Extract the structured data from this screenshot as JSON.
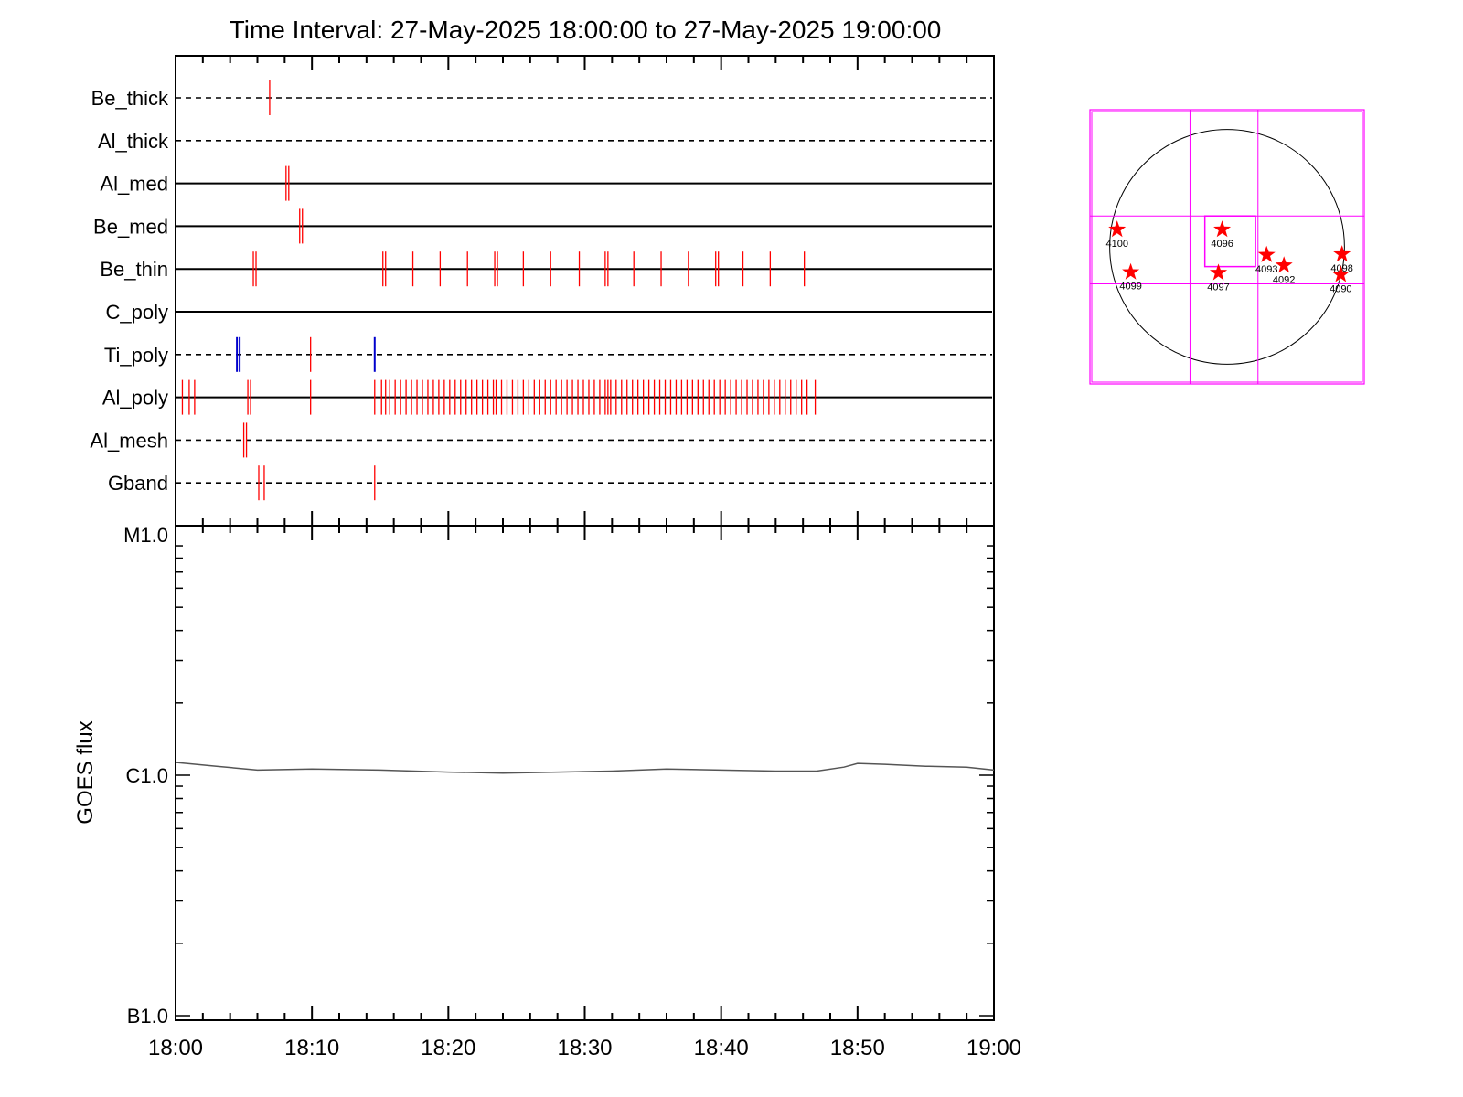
{
  "title": "Time Interval: 27-May-2025 18:00:00 to 27-May-2025 19:00:00",
  "colors": {
    "axis": "#000000",
    "event_red": "#ff0000",
    "event_blue": "#0000cc",
    "grid_magenta": "#ff00ff",
    "goes_line": "#555555"
  },
  "chart_data": [
    {
      "type": "scatter",
      "title": "Time Interval: 27-May-2025 18:00:00 to 27-May-2025 19:00:00",
      "x_units": "minutes after 18:00",
      "xlim": [
        0,
        60
      ],
      "series": [
        {
          "name": "Be_thick",
          "style": "dashed",
          "events_red": [
            6.9
          ],
          "events_blue": []
        },
        {
          "name": "Al_thick",
          "style": "dashed",
          "events_red": [],
          "events_blue": []
        },
        {
          "name": "Al_med",
          "style": "solid",
          "events_red": [
            8.1,
            8.3
          ],
          "events_blue": []
        },
        {
          "name": "Be_med",
          "style": "solid",
          "events_red": [
            9.1,
            9.3
          ],
          "events_blue": []
        },
        {
          "name": "Be_thin",
          "style": "solid",
          "events_red": [
            5.7,
            5.9,
            15.2,
            15.4,
            17.4,
            19.4,
            21.4,
            23.4,
            23.6,
            25.5,
            27.5,
            29.6,
            31.5,
            31.7,
            33.6,
            35.6,
            37.6,
            39.6,
            39.8,
            41.6,
            43.6,
            46.1
          ],
          "events_blue": []
        },
        {
          "name": "C_poly",
          "style": "solid",
          "events_red": [],
          "events_blue": []
        },
        {
          "name": "Ti_poly",
          "style": "dashed",
          "events_red": [
            9.9
          ],
          "events_blue": [
            4.5,
            4.7,
            14.6
          ]
        },
        {
          "name": "Al_poly",
          "style": "solid",
          "events_red": [
            0.5,
            1.0,
            1.4,
            5.3,
            5.5,
            9.9,
            14.6,
            15.1,
            15.4,
            15.7,
            16.1,
            16.5,
            16.9,
            17.3,
            17.7,
            18.1,
            18.5,
            18.9,
            19.3,
            19.7,
            20.1,
            20.5,
            20.9,
            21.3,
            21.7,
            22.1,
            22.5,
            22.9,
            23.3,
            23.5,
            23.9,
            24.3,
            24.7,
            25.1,
            25.5,
            25.9,
            26.3,
            26.7,
            27.1,
            27.5,
            27.9,
            28.3,
            28.7,
            29.1,
            29.5,
            29.9,
            30.3,
            30.7,
            31.1,
            31.5,
            31.7,
            31.9,
            32.3,
            32.7,
            33.1,
            33.5,
            33.9,
            34.3,
            34.7,
            35.1,
            35.5,
            35.9,
            36.3,
            36.7,
            37.1,
            37.5,
            37.9,
            38.3,
            38.7,
            39.1,
            39.5,
            39.9,
            40.3,
            40.7,
            41.1,
            41.5,
            41.9,
            42.3,
            42.7,
            43.1,
            43.5,
            43.9,
            44.3,
            44.7,
            45.1,
            45.5,
            45.9,
            46.3,
            46.9
          ],
          "events_blue": []
        },
        {
          "name": "Al_mesh",
          "style": "dashed",
          "events_red": [
            5.0,
            5.2
          ],
          "events_blue": []
        },
        {
          "name": "Gband",
          "style": "dashed",
          "events_red": [
            6.1,
            6.5,
            14.6
          ],
          "events_blue": []
        }
      ]
    },
    {
      "type": "line",
      "ylabel": "GOES flux",
      "y_scale": "log",
      "y_ticks": [
        {
          "label": "M1.0",
          "value": 1e-05
        },
        {
          "label": "C1.0",
          "value": 1e-06
        },
        {
          "label": "B1.0",
          "value": 1e-07
        }
      ],
      "ylim": [
        1e-07,
        1e-05
      ],
      "x_tick_labels": [
        "18:00",
        "18:10",
        "18:20",
        "18:30",
        "18:40",
        "18:50",
        "19:00"
      ],
      "x": [
        0,
        3,
        6,
        10,
        15,
        20,
        24,
        28,
        32,
        36,
        40,
        44,
        47,
        49,
        50,
        52,
        55,
        58,
        60
      ],
      "values": [
        1.13e-06,
        1.09e-06,
        1.05e-06,
        1.06e-06,
        1.05e-06,
        1.03e-06,
        1.02e-06,
        1.03e-06,
        1.04e-06,
        1.06e-06,
        1.05e-06,
        1.04e-06,
        1.04e-06,
        1.08e-06,
        1.12e-06,
        1.11e-06,
        1.09e-06,
        1.08e-06,
        1.05e-06
      ]
    },
    {
      "type": "scatter",
      "title": "",
      "x_units": "arcsec",
      "y_units": "arcsec",
      "disk_radius": 950,
      "fov": [
        -1110,
        1110
      ],
      "points": [
        {
          "label": "4100",
          "x": -890,
          "y": 140
        },
        {
          "label": "4099",
          "x": -780,
          "y": -205
        },
        {
          "label": "4096",
          "x": -40,
          "y": 140
        },
        {
          "label": "4097",
          "x": -70,
          "y": -210
        },
        {
          "label": "4093",
          "x": 320,
          "y": -65
        },
        {
          "label": "4092",
          "x": 460,
          "y": -150
        },
        {
          "label": "4098",
          "x": 930,
          "y": -60
        },
        {
          "label": "4090",
          "x": 920,
          "y": -225
        }
      ]
    }
  ]
}
